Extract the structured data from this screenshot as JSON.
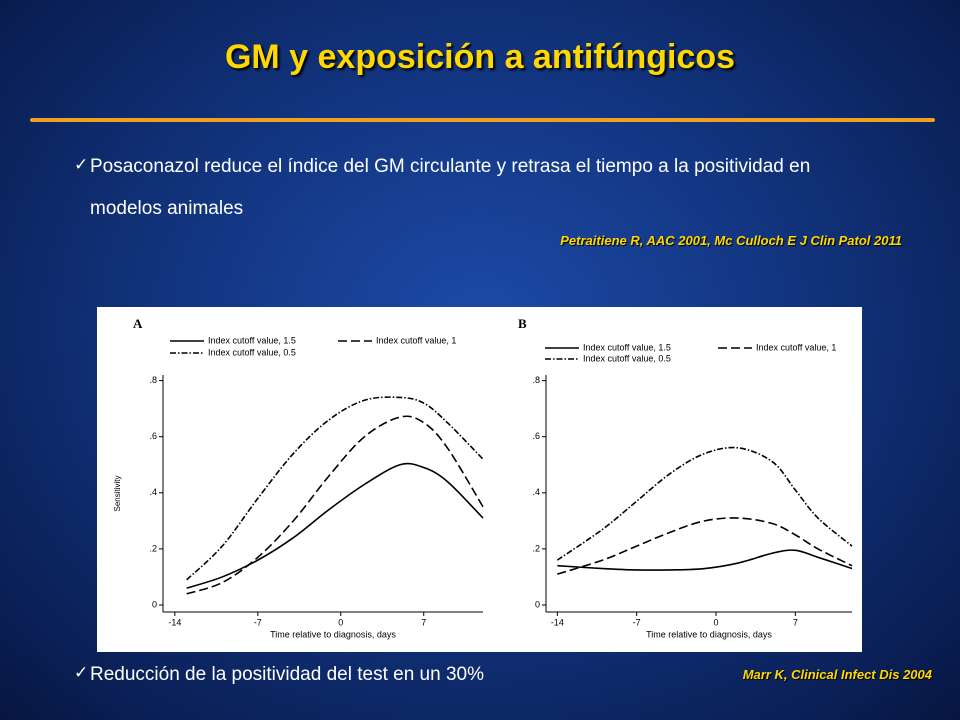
{
  "title": "GM y exposición a antifúngicos",
  "bullets": [
    "Posaconazol reduce el índice del GM circulante y retrasa el tiempo a la positividad en modelos animales",
    "Reducción de la positividad del test en un 30%"
  ],
  "citations": [
    "Petraitiene R, AAC 2001, Mc Culloch E J Clin Patol 2011",
    "Marr K, Clinical Infect Dis 2004"
  ],
  "chart_data": [
    {
      "type": "line",
      "label": "A",
      "xlabel": "Time relative to diagnosis, days",
      "ylabel": "Sensitivity",
      "x": [
        -13,
        -10,
        -7,
        -4,
        -1,
        2,
        5,
        7,
        9,
        12
      ],
      "series": [
        {
          "name": "Index cutoff value, 1.5",
          "color": "#000000",
          "dash": "solid",
          "values": [
            0.06,
            0.1,
            0.16,
            0.24,
            0.34,
            0.43,
            0.5,
            0.49,
            0.44,
            0.31
          ]
        },
        {
          "name": "Index cutoff value, 1",
          "color": "#000000",
          "dash": "dashed",
          "values": [
            0.04,
            0.08,
            0.17,
            0.3,
            0.46,
            0.6,
            0.67,
            0.65,
            0.56,
            0.35
          ]
        },
        {
          "name": "Index cutoff value, 0.5",
          "color": "#000000",
          "dash": "dashdot",
          "values": [
            0.09,
            0.21,
            0.38,
            0.54,
            0.66,
            0.73,
            0.74,
            0.72,
            0.65,
            0.52
          ]
        }
      ],
      "xlim": [
        -15,
        12
      ],
      "ylim": [
        -0.025,
        0.82
      ],
      "xticks": [
        -14,
        -7,
        0,
        7
      ],
      "yticks": [
        0,
        {
          "value": 0.2,
          "label": ".2"
        },
        {
          "value": 0.4,
          "label": ".4"
        },
        {
          "value": 0.6,
          "label": ".6"
        },
        {
          "value": 0.8,
          "label": ".8"
        }
      ]
    },
    {
      "type": "line",
      "label": "B",
      "xlabel": "Time relative to diagnosis, days",
      "x": [
        -14,
        -10,
        -7,
        -4,
        -1,
        2,
        5,
        7,
        9,
        12
      ],
      "series": [
        {
          "name": "Index cutoff value, 1.5",
          "color": "#000000",
          "dash": "solid",
          "values": [
            0.14,
            0.13,
            0.125,
            0.125,
            0.13,
            0.15,
            0.185,
            0.195,
            0.17,
            0.13
          ]
        },
        {
          "name": "Index cutoff value, 1",
          "color": "#000000",
          "dash": "dashed",
          "values": [
            0.11,
            0.16,
            0.21,
            0.26,
            0.3,
            0.31,
            0.29,
            0.25,
            0.2,
            0.14
          ]
        },
        {
          "name": "Index cutoff value, 0.5",
          "color": "#000000",
          "dash": "dashdot",
          "values": [
            0.16,
            0.27,
            0.37,
            0.47,
            0.54,
            0.56,
            0.51,
            0.41,
            0.31,
            0.21
          ]
        }
      ],
      "xlim": [
        -15,
        12
      ],
      "ylim": [
        -0.025,
        0.82
      ],
      "xticks": [
        -14,
        -7,
        0,
        7
      ],
      "yticks": [
        0,
        {
          "value": 0.2,
          "label": ".2"
        },
        {
          "value": 0.4,
          "label": ".4"
        },
        {
          "value": 0.6,
          "label": ".6"
        },
        {
          "value": 0.8,
          "label": ".8"
        }
      ]
    }
  ]
}
